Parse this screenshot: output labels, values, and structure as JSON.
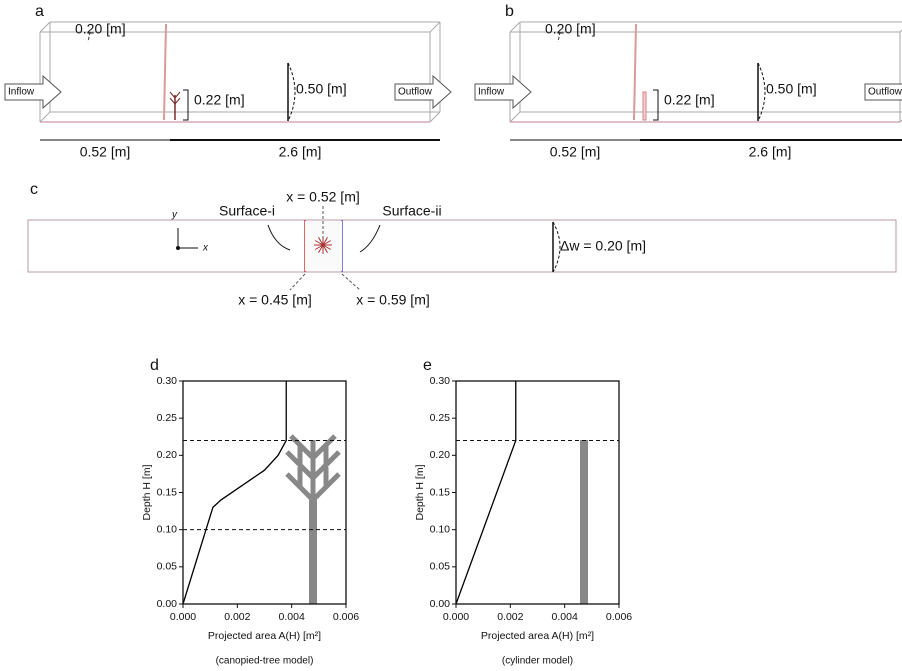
{
  "panel_a": {
    "label": "a",
    "top_width": "0.20 [m]",
    "inflow": "Inflow",
    "model_height": "0.22 [m]",
    "depth": "0.50 [m]",
    "outflow": "Outflow",
    "upstream_length": "0.52 [m]",
    "downstream_length": "2.6 [m]"
  },
  "panel_b": {
    "label": "b",
    "top_width": "0.20 [m]",
    "inflow": "Inflow",
    "model_height": "0.22 [m]",
    "depth": "0.50 [m]",
    "outflow": "Outflow",
    "upstream_length": "0.52 [m]",
    "downstream_length": "2.6 [m]"
  },
  "panel_c": {
    "label": "c",
    "surface_i": "Surface-i",
    "center": "x = 0.52 [m]",
    "surface_ii": "Surface-ii",
    "width": "Δw = 0.20 [m]",
    "left": "x = 0.45 [m]",
    "right": "x = 0.59 [m]",
    "axis_y": "y",
    "axis_x": "x"
  },
  "chart_data": [
    {
      "type": "line",
      "panel": "d",
      "xlabel": "Projected area A(H) [m²]",
      "ylabel": "Depth H [m]",
      "caption": "(canopied-tree model)",
      "x": [
        0,
        0.0011,
        0.0014,
        0.0022,
        0.003,
        0.0035,
        0.0038,
        0.0038
      ],
      "values": [
        0,
        0.13,
        0.14,
        0.16,
        0.18,
        0.2,
        0.22,
        0.3
      ],
      "color": "#000000",
      "reference_lines": [
        0.22,
        0.1
      ],
      "xlim": [
        0,
        0.006
      ],
      "xticks": [
        {
          "value": 0,
          "label": "0.000"
        },
        {
          "value": 0.002,
          "label": "0.002"
        },
        {
          "value": 0.004,
          "label": "0.004"
        },
        {
          "value": 0.006,
          "label": "0.006"
        }
      ],
      "ylim": [
        0,
        0.3
      ],
      "yticks": [
        {
          "value": 0,
          "label": "0.00"
        },
        {
          "value": 0.05,
          "label": "0.05"
        },
        {
          "value": 0.1,
          "label": "0.10"
        },
        {
          "value": 0.15,
          "label": "0.15"
        },
        {
          "value": 0.2,
          "label": "0.20"
        },
        {
          "value": 0.25,
          "label": "0.25"
        },
        {
          "value": 0.3,
          "label": "0.30"
        }
      ]
    },
    {
      "type": "line",
      "panel": "e",
      "xlabel": "Projected area A(H)  [m²]",
      "ylabel": "Depth H [m]",
      "caption": "(cylinder model)",
      "x": [
        0,
        0.0022,
        0.0022
      ],
      "values": [
        0,
        0.22,
        0.3
      ],
      "color": "#000000",
      "reference_lines": [
        0.22
      ],
      "xlim": [
        0,
        0.006
      ],
      "xticks": [
        {
          "value": 0,
          "label": "0.000"
        },
        {
          "value": 0.002,
          "label": "0.002"
        },
        {
          "value": 0.004,
          "label": "0.004"
        },
        {
          "value": 0.006,
          "label": "0.006"
        }
      ],
      "ylim": [
        0,
        0.3
      ],
      "yticks": [
        {
          "value": 0,
          "label": "0.00"
        },
        {
          "value": 0.05,
          "label": "0.05"
        },
        {
          "value": 0.1,
          "label": "0.10"
        },
        {
          "value": 0.15,
          "label": "0.15"
        },
        {
          "value": 0.2,
          "label": "0.20"
        },
        {
          "value": 0.25,
          "label": "0.25"
        },
        {
          "value": 0.3,
          "label": "0.30"
        }
      ]
    }
  ]
}
